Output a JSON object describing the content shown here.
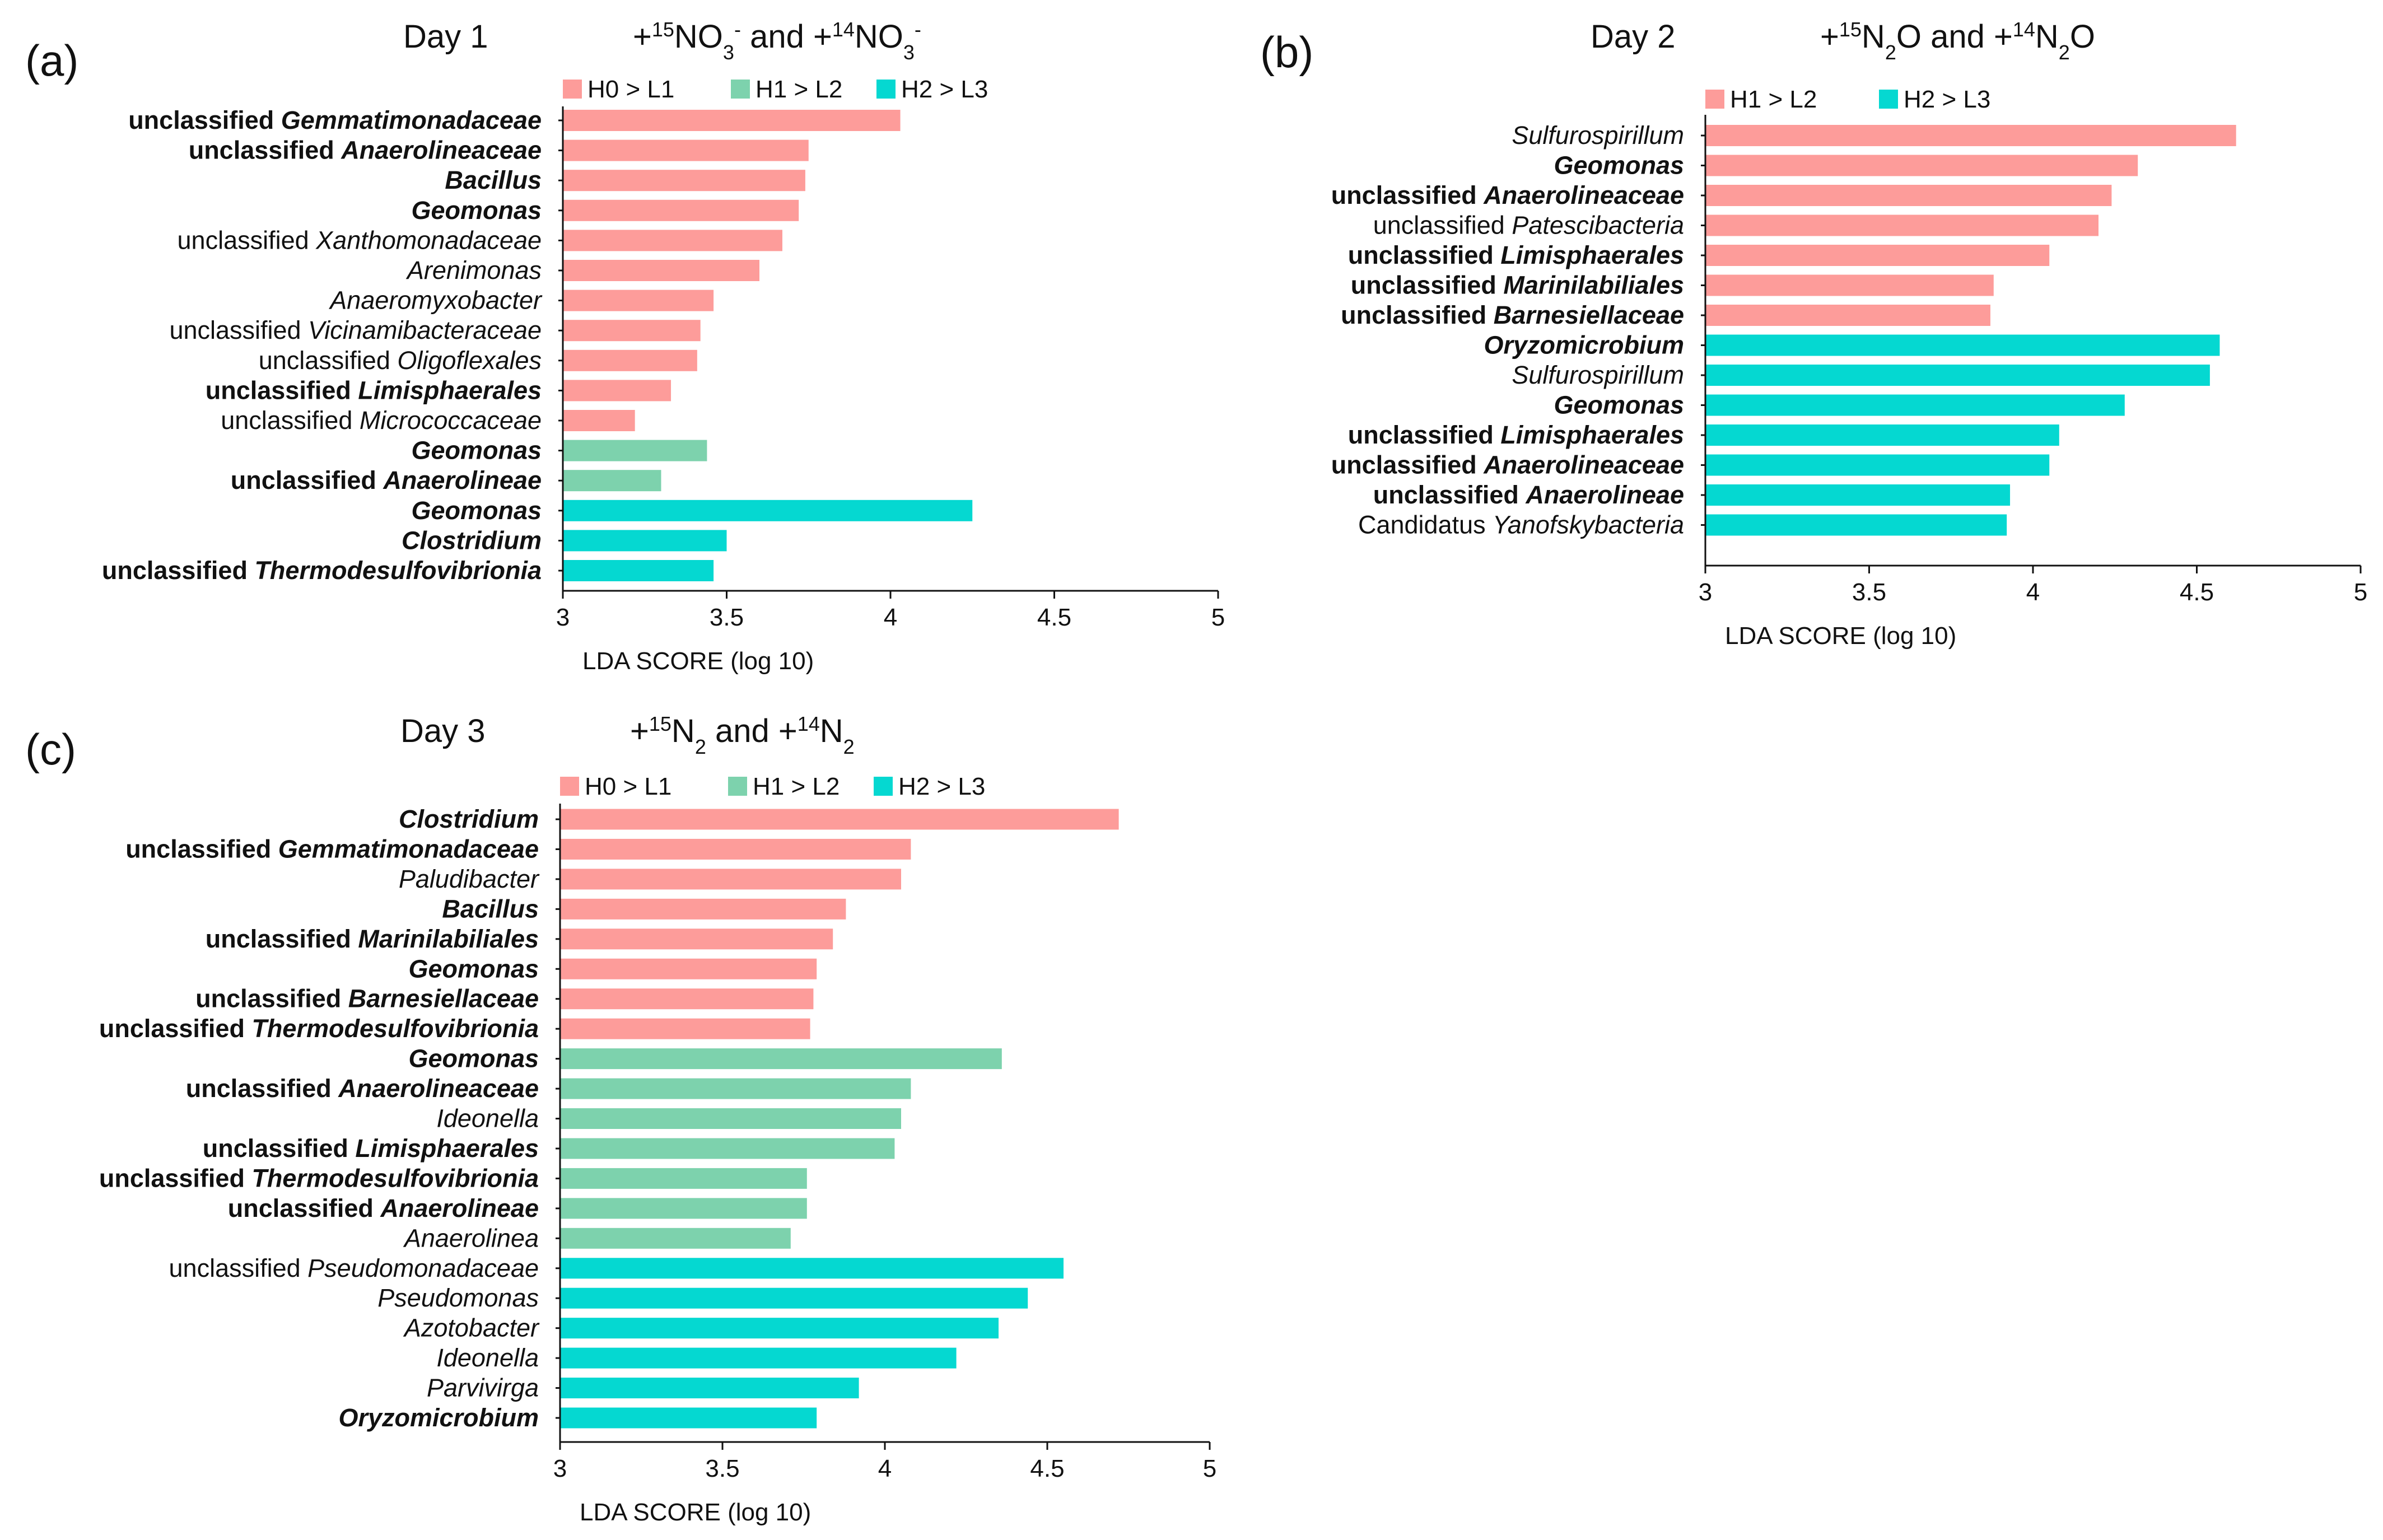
{
  "colors": {
    "H0_L1": "#fd9c9a",
    "H1_L2_a": "#7dd2ad",
    "H1_L2_b": "#fd9c9a",
    "H2_L3": "#05d8d1"
  },
  "chart_data": [
    {
      "type": "bar",
      "orientation": "horizontal",
      "panel": "(a)",
      "day": "Day 1",
      "condition": {
        "p1": "+",
        "sup1": "15",
        "base1": "NO",
        "sub1": "3",
        "supb1": "-",
        "mid": " and +",
        "sup2": "14",
        "base2": "NO",
        "sub2": "3",
        "supb2": "-"
      },
      "xlabel": "LDA SCORE (log 10)",
      "xlim": [
        3,
        5
      ],
      "xticks": [
        "3",
        "3.5",
        "4",
        "4.5",
        "5"
      ],
      "legend_position": "top",
      "legend": [
        {
          "label": "H0 > L1",
          "color_key": "H0_L1"
        },
        {
          "label": "H1 > L2",
          "color_key": "H1_L2_a"
        },
        {
          "label": "H2 > L3",
          "color_key": "H2_L3"
        }
      ],
      "bars": [
        {
          "plain": "unclassified ",
          "italic": "Gemmatimonadaceae",
          "bold": true,
          "value": 4.03,
          "group": "H0_L1"
        },
        {
          "plain": "unclassified ",
          "italic": "Anaerolineaceae",
          "bold": true,
          "value": 3.75,
          "group": "H0_L1"
        },
        {
          "plain": "",
          "italic": "Bacillus",
          "bold": true,
          "value": 3.74,
          "group": "H0_L1"
        },
        {
          "plain": "",
          "italic": "Geomonas",
          "bold": true,
          "value": 3.72,
          "group": "H0_L1"
        },
        {
          "plain": "unclassified ",
          "italic": "Xanthomonadaceae",
          "bold": false,
          "value": 3.67,
          "group": "H0_L1"
        },
        {
          "plain": "",
          "italic": "Arenimonas",
          "bold": false,
          "value": 3.6,
          "group": "H0_L1"
        },
        {
          "plain": "",
          "italic": "Anaeromyxobacter",
          "bold": false,
          "value": 3.46,
          "group": "H0_L1"
        },
        {
          "plain": "unclassified ",
          "italic": "Vicinamibacteraceae",
          "bold": false,
          "value": 3.42,
          "group": "H0_L1"
        },
        {
          "plain": "unclassified ",
          "italic": "Oligoflexales",
          "bold": false,
          "value": 3.41,
          "group": "H0_L1"
        },
        {
          "plain": "unclassified ",
          "italic": "Limisphaerales",
          "bold": true,
          "value": 3.33,
          "group": "H0_L1"
        },
        {
          "plain": "unclassified ",
          "italic": "Micrococcaceae",
          "bold": false,
          "value": 3.22,
          "group": "H0_L1"
        },
        {
          "plain": "",
          "italic": "Geomonas",
          "bold": true,
          "value": 3.44,
          "group": "H1_L2_a"
        },
        {
          "plain": "unclassified ",
          "italic": "Anaerolineae",
          "bold": true,
          "value": 3.3,
          "group": "H1_L2_a"
        },
        {
          "plain": "",
          "italic": "Geomonas",
          "bold": true,
          "value": 4.25,
          "group": "H2_L3"
        },
        {
          "plain": "",
          "italic": "Clostridium",
          "bold": true,
          "value": 3.5,
          "group": "H2_L3"
        },
        {
          "plain": "unclassified ",
          "italic": "Thermodesulfovibrionia",
          "bold": true,
          "value": 3.46,
          "group": "H2_L3"
        }
      ]
    },
    {
      "type": "bar",
      "orientation": "horizontal",
      "panel": "(b)",
      "day": "Day 2",
      "condition": {
        "p1": "+",
        "sup1": "15",
        "base1": "N",
        "sub1": "2",
        "after1": "O",
        "mid": " and +",
        "sup2": "14",
        "base2": "N",
        "sub2": "2",
        "after2": "O"
      },
      "xlabel": "LDA SCORE (log 10)",
      "xlim": [
        3,
        5
      ],
      "xticks": [
        "3",
        "3.5",
        "4",
        "4.5",
        "5"
      ],
      "legend_position": "top",
      "legend": [
        {
          "label": "H1 > L2",
          "color_key": "H1_L2_b"
        },
        {
          "label": "H2 > L3",
          "color_key": "H2_L3"
        }
      ],
      "bars": [
        {
          "plain": "",
          "italic": "Sulfurospirillum",
          "bold": false,
          "value": 4.62,
          "group": "H1_L2_b"
        },
        {
          "plain": "",
          "italic": "Geomonas",
          "bold": true,
          "value": 4.32,
          "group": "H1_L2_b"
        },
        {
          "plain": "unclassified ",
          "italic": "Anaerolineaceae",
          "bold": true,
          "value": 4.24,
          "group": "H1_L2_b"
        },
        {
          "plain": "unclassified ",
          "italic": "Patescibacteria",
          "bold": false,
          "value": 4.2,
          "group": "H1_L2_b"
        },
        {
          "plain": "unclassified ",
          "italic": "Limisphaerales",
          "bold": true,
          "value": 4.05,
          "group": "H1_L2_b"
        },
        {
          "plain": "unclassified ",
          "italic": "Marinilabiliales",
          "bold": true,
          "value": 3.88,
          "group": "H1_L2_b"
        },
        {
          "plain": "unclassified ",
          "italic": "Barnesiellaceae",
          "bold": true,
          "value": 3.87,
          "group": "H1_L2_b"
        },
        {
          "plain": "",
          "italic": "Oryzomicrobium",
          "bold": true,
          "value": 4.57,
          "group": "H2_L3"
        },
        {
          "plain": "",
          "italic": "Sulfurospirillum",
          "bold": false,
          "value": 4.54,
          "group": "H2_L3"
        },
        {
          "plain": "",
          "italic": "Geomonas",
          "bold": true,
          "value": 4.28,
          "group": "H2_L3"
        },
        {
          "plain": "unclassified ",
          "italic": "Limisphaerales",
          "bold": true,
          "value": 4.08,
          "group": "H2_L3"
        },
        {
          "plain": "unclassified ",
          "italic": "Anaerolineaceae",
          "bold": true,
          "value": 4.05,
          "group": "H2_L3"
        },
        {
          "plain": "unclassified  ",
          "italic": "Anaerolineae",
          "bold": true,
          "value": 3.93,
          "group": "H2_L3"
        },
        {
          "plain": "Candidatus ",
          "italic": "Yanofskybacteria",
          "bold": false,
          "value": 3.92,
          "group": "H2_L3"
        }
      ]
    },
    {
      "type": "bar",
      "orientation": "horizontal",
      "panel": "(c)",
      "day": "Day 3",
      "condition": {
        "p1": "+",
        "sup1": "15",
        "base1": "N",
        "sub1": "2",
        "mid": " and +",
        "sup2": "14",
        "base2": "N",
        "sub2": "2"
      },
      "xlabel": "LDA SCORE (log 10)",
      "xlim": [
        3,
        5
      ],
      "xticks": [
        "3",
        "3.5",
        "4",
        "4.5",
        "5"
      ],
      "legend_position": "top",
      "legend": [
        {
          "label": "H0 > L1",
          "color_key": "H0_L1"
        },
        {
          "label": "H1 > L2",
          "color_key": "H1_L2_a"
        },
        {
          "label": "H2 > L3",
          "color_key": "H2_L3"
        }
      ],
      "bars": [
        {
          "plain": "",
          "italic": "Clostridium",
          "bold": true,
          "value": 4.72,
          "group": "H0_L1"
        },
        {
          "plain": "unclassified ",
          "italic": "Gemmatimonadaceae",
          "bold": true,
          "value": 4.08,
          "group": "H0_L1"
        },
        {
          "plain": "",
          "italic": "Paludibacter",
          "bold": false,
          "value": 4.05,
          "group": "H0_L1"
        },
        {
          "plain": "",
          "italic": "Bacillus",
          "bold": true,
          "value": 3.88,
          "group": "H0_L1"
        },
        {
          "plain": "unclassified ",
          "italic": "Marinilabiliales",
          "bold": true,
          "value": 3.84,
          "group": "H0_L1"
        },
        {
          "plain": "",
          "italic": "Geomonas",
          "bold": true,
          "value": 3.79,
          "group": "H0_L1"
        },
        {
          "plain": "unclassified ",
          "italic": "Barnesiellaceae",
          "bold": true,
          "value": 3.78,
          "group": "H0_L1"
        },
        {
          "plain": "unclassified ",
          "italic": "Thermodesulfovibrionia",
          "bold": true,
          "value": 3.77,
          "group": "H0_L1"
        },
        {
          "plain": "",
          "italic": "Geomonas",
          "bold": true,
          "value": 4.36,
          "group": "H1_L2_a"
        },
        {
          "plain": "unclassified ",
          "italic": "Anaerolineaceae",
          "bold": true,
          "value": 4.08,
          "group": "H1_L2_a"
        },
        {
          "plain": "",
          "italic": "Ideonella",
          "bold": false,
          "value": 4.05,
          "group": "H1_L2_a"
        },
        {
          "plain": "unclassified ",
          "italic": "Limisphaerales",
          "bold": true,
          "value": 4.03,
          "group": "H1_L2_a"
        },
        {
          "plain": "unclassified ",
          "italic": "Thermodesulfovibrionia",
          "bold": true,
          "value": 3.76,
          "group": "H1_L2_a"
        },
        {
          "plain": "unclassified ",
          "italic": "Anaerolineae",
          "bold": true,
          "value": 3.76,
          "group": "H1_L2_a"
        },
        {
          "plain": "",
          "italic": "Anaerolinea",
          "bold": false,
          "value": 3.71,
          "group": "H1_L2_a"
        },
        {
          "plain": "unclassified ",
          "italic": "Pseudomonadaceae",
          "bold": false,
          "value": 4.55,
          "group": "H2_L3"
        },
        {
          "plain": "",
          "italic": "Pseudomonas",
          "bold": false,
          "value": 4.44,
          "group": "H2_L3"
        },
        {
          "plain": "",
          "italic": "Azotobacter",
          "bold": false,
          "value": 4.35,
          "group": "H2_L3"
        },
        {
          "plain": "",
          "italic": "Ideonella",
          "bold": false,
          "value": 4.22,
          "group": "H2_L3"
        },
        {
          "plain": "",
          "italic": "Parvivirga",
          "bold": false,
          "value": 3.92,
          "group": "H2_L3"
        },
        {
          "plain": "",
          "italic": "Oryzomicrobium",
          "bold": true,
          "value": 3.79,
          "group": "H2_L3"
        }
      ]
    }
  ]
}
